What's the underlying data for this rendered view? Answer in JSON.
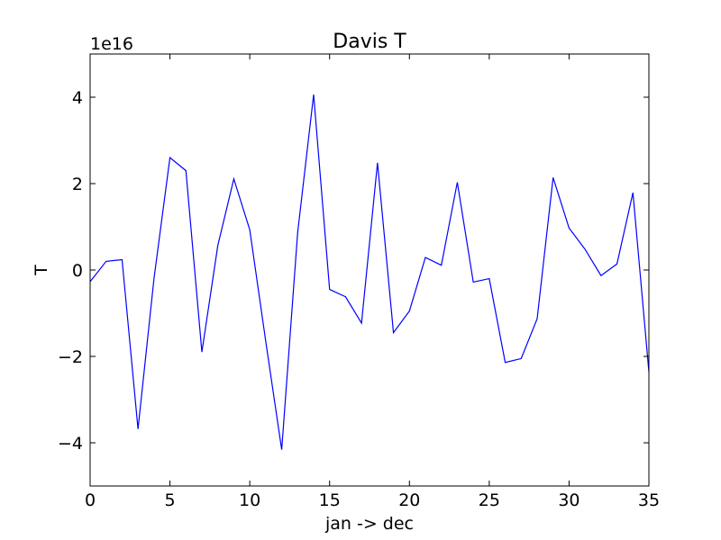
{
  "chart_data": {
    "type": "line",
    "title": "Davis T",
    "xlabel": "jan -> dec",
    "ylabel": "T",
    "y_offset_label": "1e16",
    "xlim": [
      0,
      35
    ],
    "ylim": [
      -5,
      5
    ],
    "x_ticks": [
      0,
      5,
      10,
      15,
      20,
      25,
      30,
      35
    ],
    "x_tick_labels": [
      "0",
      "5",
      "10",
      "15",
      "20",
      "25",
      "30",
      "35"
    ],
    "y_ticks": [
      -4,
      -2,
      0,
      2,
      4
    ],
    "y_tick_labels": [
      "−4",
      "−2",
      "0",
      "2",
      "4"
    ],
    "grid": false,
    "series": [
      {
        "color": "#0000ff",
        "x": [
          0,
          1,
          2,
          3,
          4,
          5,
          6,
          7,
          8,
          9,
          10,
          11,
          12,
          13,
          14,
          15,
          16,
          17,
          18,
          19,
          20,
          21,
          22,
          23,
          24,
          25,
          26,
          27,
          28,
          29,
          30,
          31,
          32,
          33,
          34,
          35
        ],
        "y": [
          -0.27,
          0.2,
          0.24,
          -3.68,
          -0.2,
          2.6,
          2.3,
          -1.9,
          0.57,
          2.11,
          0.93,
          -1.65,
          -4.16,
          0.87,
          4.06,
          -0.45,
          -0.62,
          -1.23,
          2.48,
          -1.45,
          -0.95,
          0.29,
          0.11,
          2.03,
          -0.28,
          -0.2,
          -2.14,
          -2.05,
          -1.13,
          2.14,
          0.97,
          0.48,
          -0.13,
          0.14,
          1.79,
          -2.36
        ]
      }
    ]
  }
}
